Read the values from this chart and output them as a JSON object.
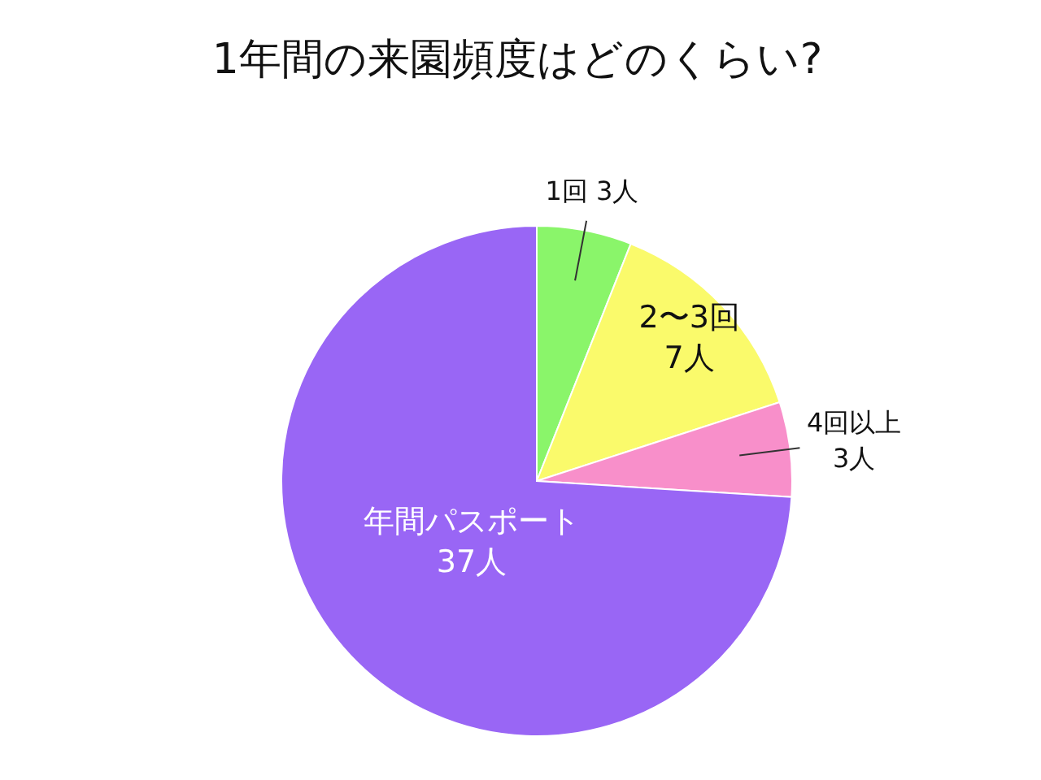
{
  "chart_data": {
    "type": "pie",
    "title": "1年間の来園頻度はどのくらい?",
    "categories": [
      "1回",
      "2〜3回",
      "4回以上",
      "年間パスポート"
    ],
    "values": [
      3,
      7,
      3,
      37
    ],
    "value_labels": [
      "3人",
      "7人",
      "3人",
      "37人"
    ],
    "colors": [
      "#8af56a",
      "#fafa6b",
      "#f88fca",
      "#9966f5"
    ]
  }
}
